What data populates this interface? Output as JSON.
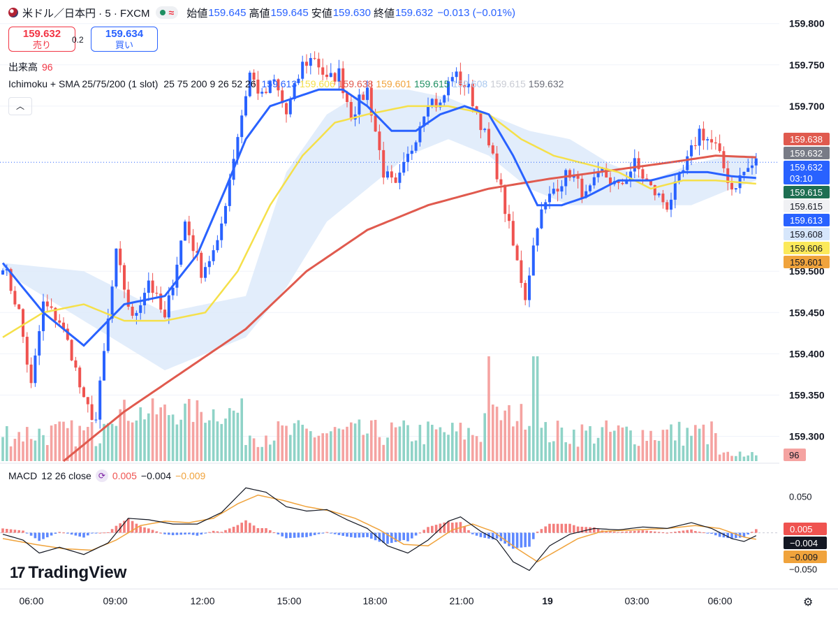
{
  "header": {
    "symbol": "米ドル／日本円 · 5 · FXCM",
    "open_label": "始値",
    "open": "159.645",
    "high_label": "高値",
    "high": "159.645",
    "low_label": "安値",
    "low": "159.630",
    "close_label": "終値",
    "close": "159.632",
    "change": "−0.013 (−0.01%)"
  },
  "trade": {
    "sell_price": "159.632",
    "sell_label": "売り",
    "spread": "0.2",
    "buy_price": "159.634",
    "buy_label": "買い"
  },
  "volume_legend": {
    "label": "出来高",
    "value": "96"
  },
  "ichimoku_legend": {
    "name": "Ichimoku + SMA 25/75/200 (1 slot)",
    "params": "25 75 200 9 26 52 26",
    "values": [
      "159.613",
      "159.606",
      "159.638",
      "159.601",
      "159.615",
      "159.608",
      "159.615",
      "159.632"
    ],
    "colors": [
      "#2962ff",
      "#f5e04a",
      "#e05a4e",
      "#f0a33c",
      "#1e8f62",
      "#a9c8ef",
      "#c9ccd4",
      "#6a6d78"
    ]
  },
  "macd_legend": {
    "name": "MACD",
    "params": "12 26 close",
    "hist": "0.005",
    "macd": "−0.004",
    "signal": "−0.009"
  },
  "price_axis": {
    "ticks": [
      "159.800",
      "159.750",
      "159.700",
      "159.500",
      "159.450",
      "159.400",
      "159.350",
      "159.300"
    ]
  },
  "price_tags": [
    {
      "value": "159.638",
      "bg": "#e05a4e",
      "fg": "#ffffff"
    },
    {
      "value": "159.632",
      "bg": "#787b86",
      "fg": "#ffffff"
    },
    {
      "value": "159.632",
      "sub": "03:10",
      "bg": "#2962ff",
      "fg": "#ffffff"
    },
    {
      "value": "159.615",
      "bg": "#1e6f52",
      "fg": "#ffffff"
    },
    {
      "value": "159.615",
      "bg": "#f0f1f4",
      "fg": "#131722"
    },
    {
      "value": "159.613",
      "bg": "#2962ff",
      "fg": "#ffffff"
    },
    {
      "value": "159.608",
      "bg": "#d6e6fb",
      "fg": "#131722"
    },
    {
      "value": "159.606",
      "bg": "#fbe95a",
      "fg": "#131722"
    },
    {
      "value": "159.601",
      "bg": "#f0a33c",
      "fg": "#131722"
    }
  ],
  "volume_tag": "96",
  "macd_axis": {
    "ticks": [
      "0.050",
      "−0.050"
    ]
  },
  "macd_tags": [
    {
      "value": "0.005",
      "bg": "#ef5350",
      "fg": "#ffffff"
    },
    {
      "value": "−0.004",
      "bg": "#131722",
      "fg": "#ffffff"
    },
    {
      "value": "−0.009",
      "bg": "#f0a33c",
      "fg": "#131722"
    }
  ],
  "time_axis": [
    "06:00",
    "09:00",
    "12:00",
    "15:00",
    "18:00",
    "21:00",
    "19",
    "03:00",
    "06:00"
  ],
  "branding": "TradingView",
  "chart_data": {
    "type": "candlestick",
    "interval": "5m",
    "ylim": [
      159.27,
      159.815
    ],
    "macd_ylim": [
      -0.065,
      0.07
    ],
    "colors": {
      "up": "#26a69a",
      "down": "#ef5350",
      "sma25": "#2962ff",
      "sma75": "#f5e04a",
      "sma200": "#e05a4e",
      "cloud": "#dbe8fa"
    },
    "price_anchors": [
      [
        0,
        159.51
      ],
      [
        4,
        159.45
      ],
      [
        7,
        159.36
      ],
      [
        10,
        159.46
      ],
      [
        14,
        159.44
      ],
      [
        17,
        159.4
      ],
      [
        20,
        159.34
      ],
      [
        23,
        159.32
      ],
      [
        28,
        159.52
      ],
      [
        32,
        159.44
      ],
      [
        36,
        159.49
      ],
      [
        40,
        159.44
      ],
      [
        45,
        159.56
      ],
      [
        49,
        159.5
      ],
      [
        53,
        159.53
      ],
      [
        57,
        159.64
      ],
      [
        61,
        159.74
      ],
      [
        64,
        159.71
      ],
      [
        67,
        159.73
      ],
      [
        70,
        159.69
      ],
      [
        74,
        159.75
      ],
      [
        77,
        159.76
      ],
      [
        80,
        159.73
      ],
      [
        83,
        159.74
      ],
      [
        86,
        159.69
      ],
      [
        90,
        159.72
      ],
      [
        94,
        159.62
      ],
      [
        97,
        159.6
      ],
      [
        101,
        159.65
      ],
      [
        105,
        159.71
      ],
      [
        108,
        159.7
      ],
      [
        111,
        159.74
      ],
      [
        115,
        159.72
      ],
      [
        118,
        159.68
      ],
      [
        122,
        159.62
      ],
      [
        126,
        159.53
      ],
      [
        129,
        159.47
      ],
      [
        132,
        159.56
      ],
      [
        136,
        159.6
      ],
      [
        140,
        159.62
      ],
      [
        144,
        159.59
      ],
      [
        148,
        159.62
      ],
      [
        152,
        159.6
      ],
      [
        156,
        159.63
      ],
      [
        160,
        159.6
      ],
      [
        164,
        159.58
      ],
      [
        168,
        159.62
      ],
      [
        172,
        159.67
      ],
      [
        176,
        159.65
      ],
      [
        180,
        159.6
      ],
      [
        183,
        159.62
      ],
      [
        186,
        159.632
      ]
    ],
    "sma25_anchors": [
      [
        0,
        159.51
      ],
      [
        10,
        159.45
      ],
      [
        20,
        159.41
      ],
      [
        30,
        159.46
      ],
      [
        40,
        159.47
      ],
      [
        48,
        159.52
      ],
      [
        55,
        159.6
      ],
      [
        60,
        159.66
      ],
      [
        66,
        159.7
      ],
      [
        72,
        159.71
      ],
      [
        78,
        159.72
      ],
      [
        84,
        159.72
      ],
      [
        90,
        159.7
      ],
      [
        96,
        159.67
      ],
      [
        102,
        159.67
      ],
      [
        108,
        159.69
      ],
      [
        114,
        159.7
      ],
      [
        120,
        159.69
      ],
      [
        126,
        159.64
      ],
      [
        132,
        159.58
      ],
      [
        138,
        159.58
      ],
      [
        144,
        159.59
      ],
      [
        152,
        159.61
      ],
      [
        160,
        159.61
      ],
      [
        168,
        159.62
      ],
      [
        174,
        159.62
      ],
      [
        180,
        159.615
      ],
      [
        186,
        159.613
      ]
    ],
    "sma75_anchors": [
      [
        0,
        159.42
      ],
      [
        10,
        159.45
      ],
      [
        20,
        159.46
      ],
      [
        30,
        159.44
      ],
      [
        40,
        159.44
      ],
      [
        50,
        159.45
      ],
      [
        58,
        159.5
      ],
      [
        66,
        159.58
      ],
      [
        74,
        159.64
      ],
      [
        82,
        159.68
      ],
      [
        90,
        159.69
      ],
      [
        100,
        159.7
      ],
      [
        110,
        159.7
      ],
      [
        120,
        159.69
      ],
      [
        128,
        159.66
      ],
      [
        136,
        159.64
      ],
      [
        144,
        159.63
      ],
      [
        152,
        159.62
      ],
      [
        160,
        159.6
      ],
      [
        168,
        159.61
      ],
      [
        176,
        159.61
      ],
      [
        186,
        159.606
      ]
    ],
    "sma200_anchors": [
      [
        15,
        159.27
      ],
      [
        30,
        159.33
      ],
      [
        45,
        159.38
      ],
      [
        60,
        159.43
      ],
      [
        75,
        159.5
      ],
      [
        90,
        159.55
      ],
      [
        105,
        159.58
      ],
      [
        120,
        159.6
      ],
      [
        135,
        159.612
      ],
      [
        150,
        159.622
      ],
      [
        165,
        159.632
      ],
      [
        176,
        159.64
      ],
      [
        186,
        159.638
      ]
    ],
    "cloud_top": [
      [
        0,
        159.51
      ],
      [
        20,
        159.5
      ],
      [
        40,
        159.45
      ],
      [
        60,
        159.47
      ],
      [
        70,
        159.62
      ],
      [
        80,
        159.69
      ],
      [
        90,
        159.72
      ],
      [
        100,
        159.72
      ],
      [
        110,
        159.71
      ],
      [
        120,
        159.69
      ],
      [
        130,
        159.67
      ],
      [
        140,
        159.66
      ],
      [
        150,
        159.63
      ],
      [
        160,
        159.61
      ],
      [
        170,
        159.63
      ],
      [
        180,
        159.64
      ],
      [
        186,
        159.64
      ]
    ],
    "cloud_bottom": [
      [
        0,
        159.5
      ],
      [
        20,
        159.44
      ],
      [
        40,
        159.38
      ],
      [
        60,
        159.42
      ],
      [
        70,
        159.48
      ],
      [
        80,
        159.56
      ],
      [
        90,
        159.6
      ],
      [
        100,
        159.64
      ],
      [
        110,
        159.66
      ],
      [
        120,
        159.64
      ],
      [
        130,
        159.6
      ],
      [
        140,
        159.58
      ],
      [
        150,
        159.58
      ],
      [
        160,
        159.58
      ],
      [
        170,
        159.58
      ],
      [
        180,
        159.6
      ],
      [
        186,
        159.61
      ]
    ],
    "macd_anchors": [
      [
        0,
        -0.002
      ],
      [
        5,
        -0.01
      ],
      [
        9,
        -0.028
      ],
      [
        14,
        -0.02
      ],
      [
        20,
        -0.03
      ],
      [
        26,
        -0.014
      ],
      [
        31,
        0.02
      ],
      [
        36,
        0.018
      ],
      [
        42,
        0.012
      ],
      [
        48,
        0.012
      ],
      [
        54,
        0.028
      ],
      [
        60,
        0.062
      ],
      [
        65,
        0.056
      ],
      [
        70,
        0.036
      ],
      [
        75,
        0.03
      ],
      [
        80,
        0.032
      ],
      [
        85,
        0.018
      ],
      [
        90,
        0.006
      ],
      [
        95,
        -0.018
      ],
      [
        100,
        -0.028
      ],
      [
        105,
        -0.01
      ],
      [
        110,
        0.016
      ],
      [
        113,
        0.022
      ],
      [
        118,
        0.002
      ],
      [
        122,
        -0.01
      ],
      [
        126,
        -0.04
      ],
      [
        130,
        -0.052
      ],
      [
        135,
        -0.018
      ],
      [
        140,
        -0.002
      ],
      [
        146,
        0.006
      ],
      [
        152,
        0.004
      ],
      [
        158,
        0.008
      ],
      [
        164,
        0.006
      ],
      [
        170,
        0.014
      ],
      [
        175,
        0.006
      ],
      [
        180,
        -0.008
      ],
      [
        183,
        -0.012
      ],
      [
        186,
        -0.004
      ]
    ],
    "signal_anchors": [
      [
        0,
        -0.008
      ],
      [
        8,
        -0.016
      ],
      [
        15,
        -0.022
      ],
      [
        22,
        -0.024
      ],
      [
        28,
        -0.01
      ],
      [
        34,
        0.01
      ],
      [
        40,
        0.016
      ],
      [
        46,
        0.014
      ],
      [
        52,
        0.02
      ],
      [
        58,
        0.04
      ],
      [
        63,
        0.052
      ],
      [
        69,
        0.045
      ],
      [
        75,
        0.036
      ],
      [
        81,
        0.03
      ],
      [
        87,
        0.02
      ],
      [
        93,
        0.004
      ],
      [
        99,
        -0.016
      ],
      [
        105,
        -0.018
      ],
      [
        111,
        0.004
      ],
      [
        116,
        0.012
      ],
      [
        121,
        0.002
      ],
      [
        127,
        -0.022
      ],
      [
        132,
        -0.04
      ],
      [
        137,
        -0.024
      ],
      [
        142,
        -0.008
      ],
      [
        148,
        0.002
      ],
      [
        156,
        0.004
      ],
      [
        164,
        0.006
      ],
      [
        171,
        0.01
      ],
      [
        177,
        0.006
      ],
      [
        183,
        -0.006
      ],
      [
        186,
        -0.009
      ]
    ]
  }
}
